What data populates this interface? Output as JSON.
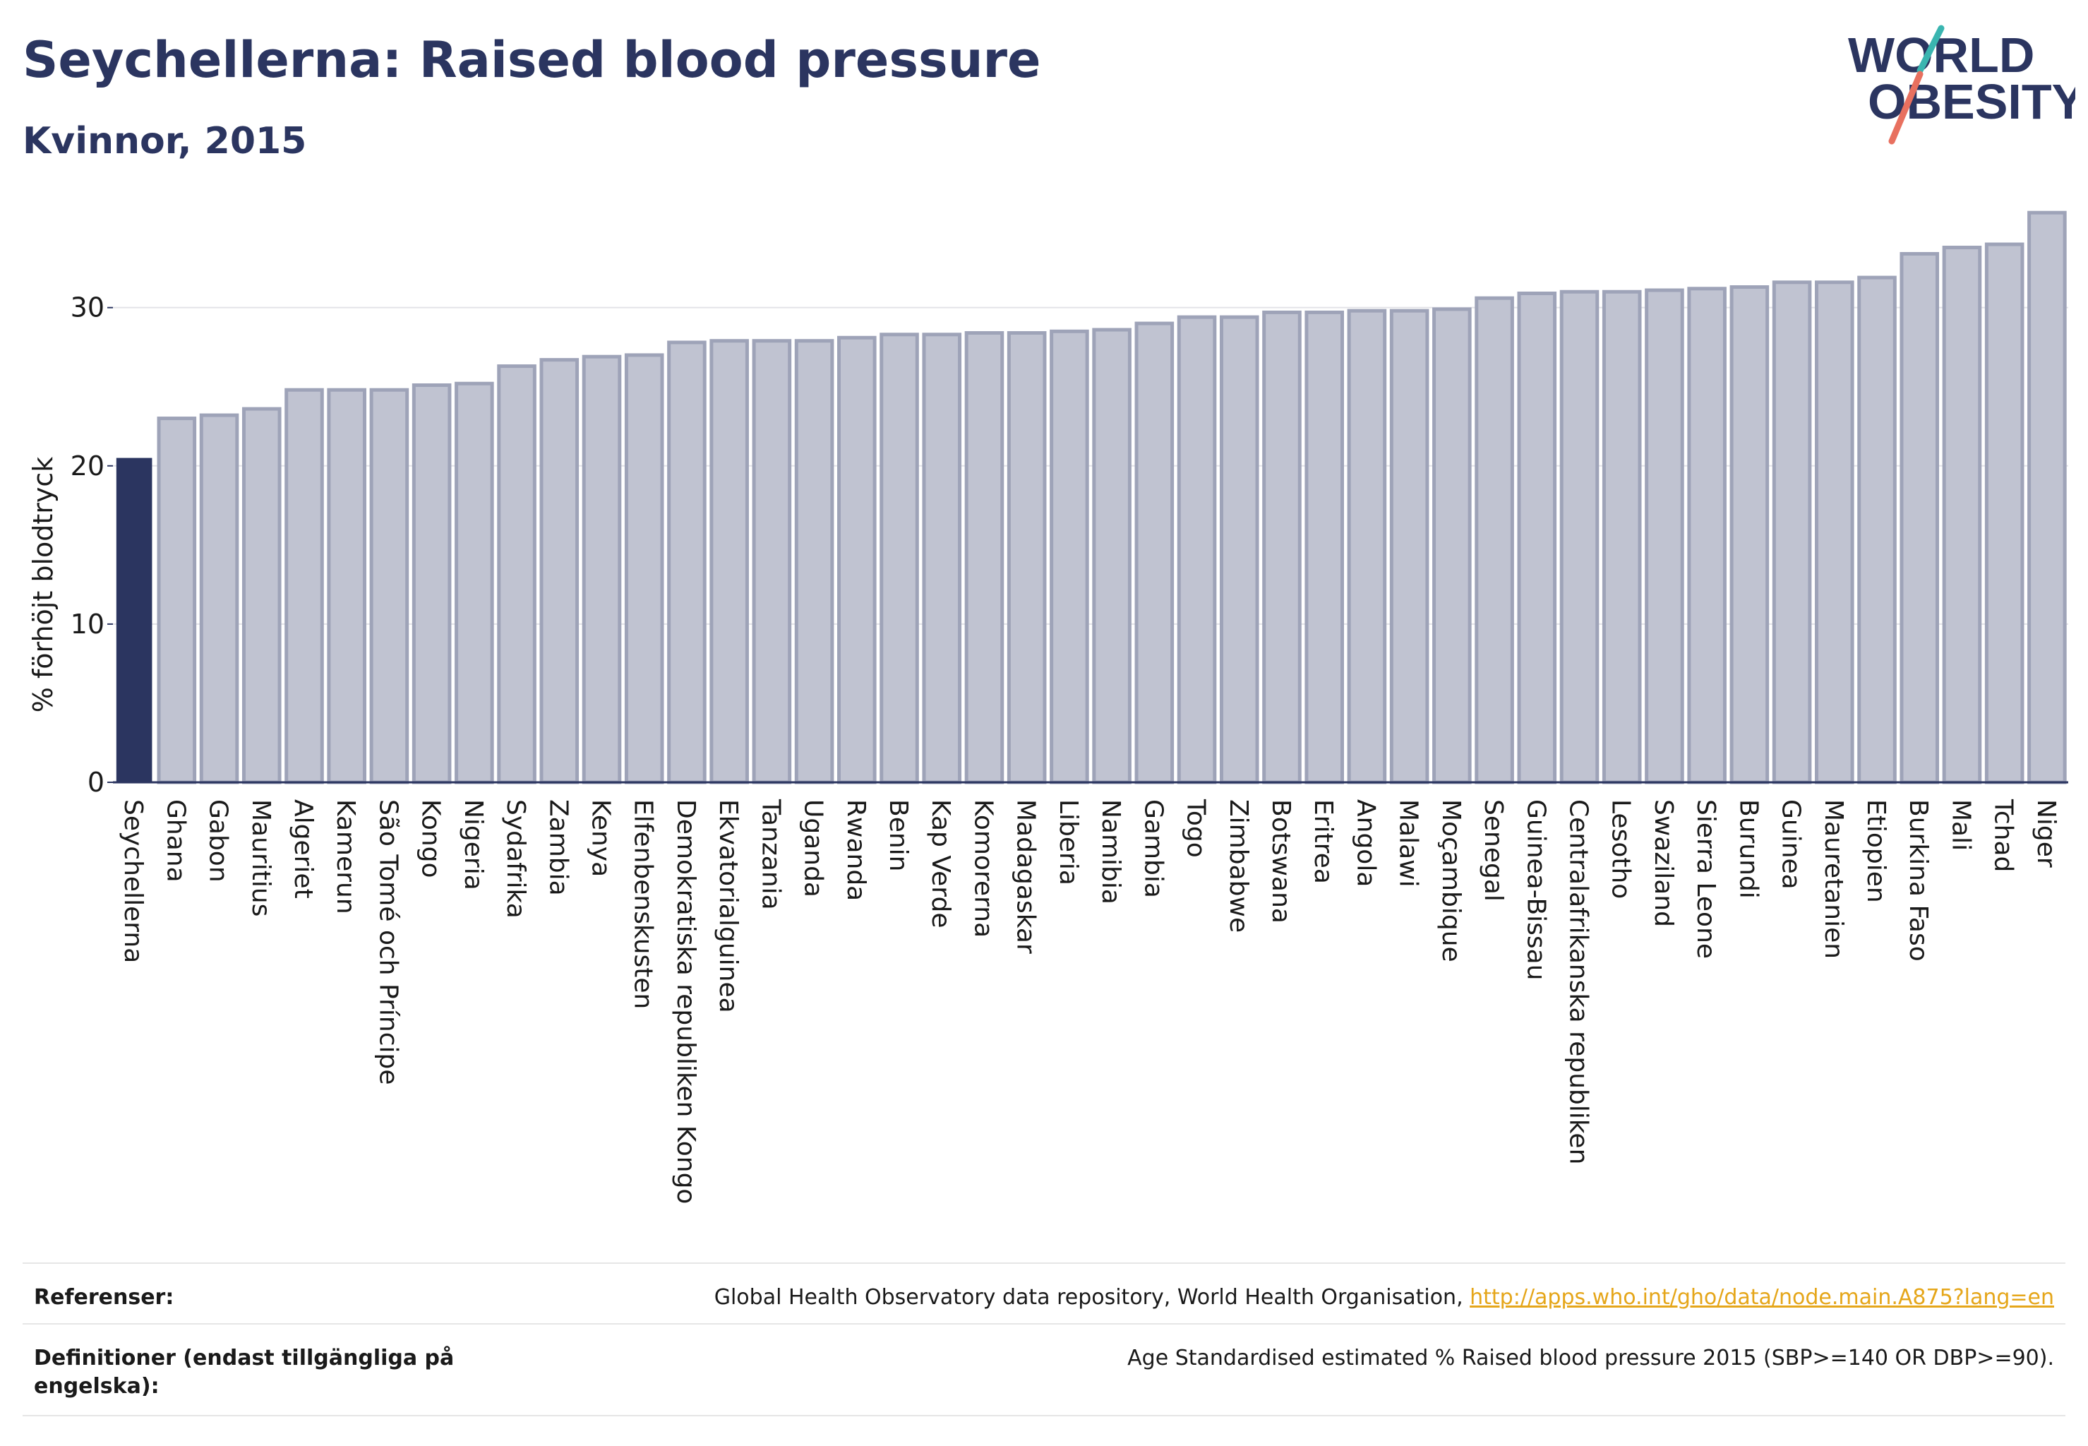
{
  "header": {
    "title": "Seychellerna: Raised blood pressure",
    "subtitle": "Kvinnor, 2015"
  },
  "logo": {
    "line1": "WORLD",
    "line2": "OBESITY",
    "accent_teal": "#3ab5b0",
    "accent_coral": "#e8705f"
  },
  "colors": {
    "highlight_bar": "#2b3560",
    "other_bar_fill": "#c0c3d1",
    "other_bar_stroke": "#9ea3b8",
    "axis_text": "#1a1a1a",
    "grid": "#e3e3e8"
  },
  "chart_data": {
    "type": "bar",
    "highlight": "Seychellerna",
    "ylabel": "% förhöjt blodtryck",
    "ylim": [
      0,
      36.5
    ],
    "yticks": [
      0,
      10,
      20,
      30
    ],
    "grid": true,
    "categories": [
      "Seychellerna",
      "Ghana",
      "Gabon",
      "Mauritius",
      "Algeriet",
      "Kamerun",
      "São Tomé och Príncipe",
      "Kongo",
      "Nigeria",
      "Sydafrika",
      "Zambia",
      "Kenya",
      "Elfenbenskusten",
      "Demokratiska republiken Kongo",
      "Ekvatorialguinea",
      "Tanzania",
      "Uganda",
      "Rwanda",
      "Benin",
      "Kap Verde",
      "Komorerna",
      "Madagaskar",
      "Liberia",
      "Namibia",
      "Gambia",
      "Togo",
      "Zimbabwe",
      "Botswana",
      "Eritrea",
      "Angola",
      "Malawi",
      "Moçambique",
      "Senegal",
      "Guinea-Bissau",
      "Centralafrikanska republiken",
      "Lesotho",
      "Swaziland",
      "Sierra Leone",
      "Burundi",
      "Guinea",
      "Mauretanien",
      "Etiopien",
      "Burkina Faso",
      "Mali",
      "Tchad",
      "Niger"
    ],
    "values": [
      20.5,
      23.0,
      23.2,
      23.6,
      24.8,
      24.8,
      24.8,
      25.1,
      25.2,
      26.3,
      26.7,
      26.9,
      27.0,
      27.8,
      27.9,
      27.9,
      27.9,
      28.1,
      28.3,
      28.3,
      28.4,
      28.4,
      28.5,
      28.6,
      29.0,
      29.4,
      29.4,
      29.7,
      29.7,
      29.8,
      29.8,
      29.9,
      30.6,
      30.9,
      31.0,
      31.0,
      31.1,
      31.2,
      31.3,
      31.6,
      31.6,
      31.9,
      33.4,
      33.8,
      34.0,
      36.0
    ]
  },
  "references": {
    "refs_label": "Referenser:",
    "refs_text": "Global Health Observatory data repository, World Health Organisation, ",
    "refs_link": "http://apps.who.int/gho/data/node.main.A875?lang=en",
    "defs_label": "Definitioner (endast tillgängliga på engelska):",
    "defs_text": "Age Standardised estimated % Raised blood pressure 2015 (SBP>=140 OR DBP>=90)."
  }
}
